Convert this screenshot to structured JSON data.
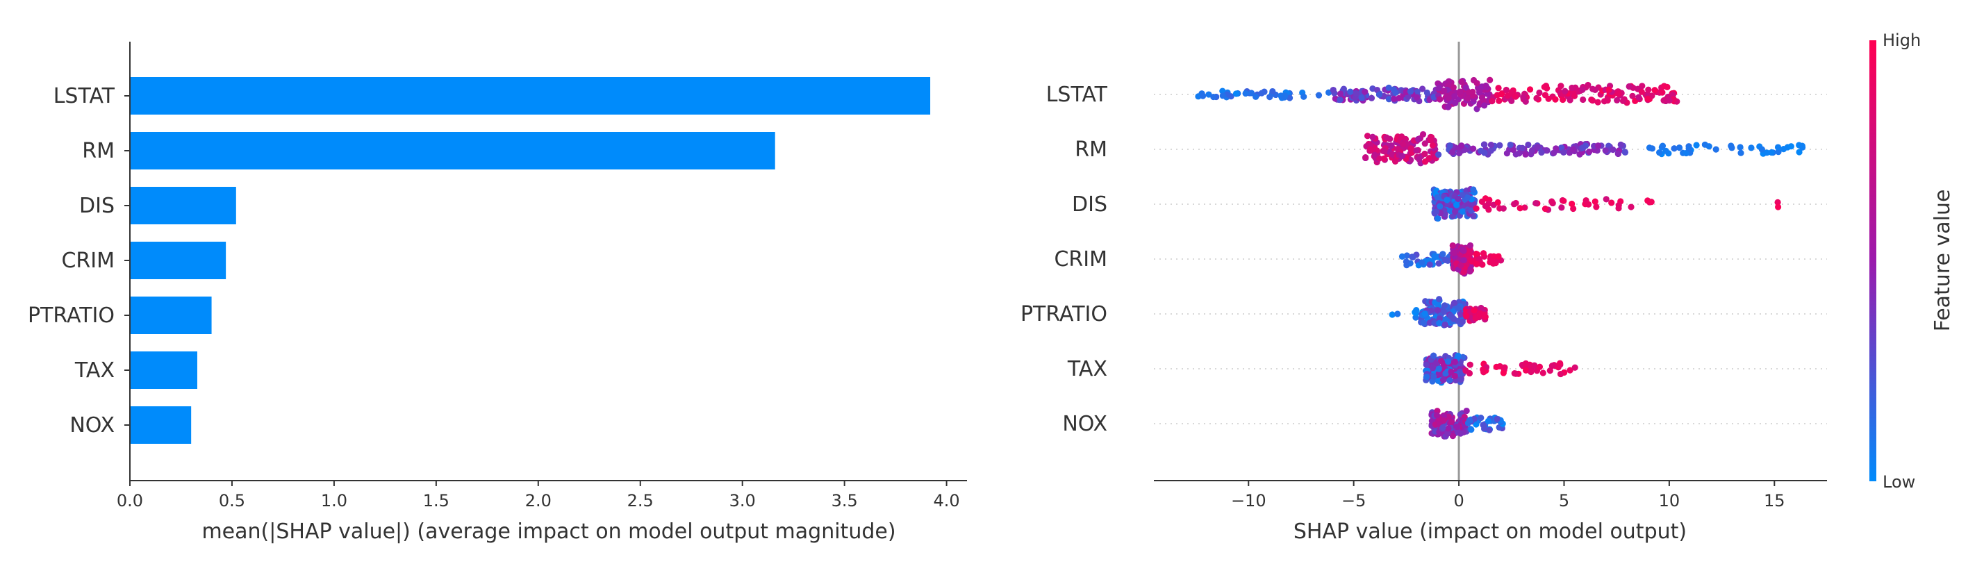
{
  "chart_data": [
    {
      "type": "bar",
      "orientation": "horizontal",
      "categories": [
        "LSTAT",
        "RM",
        "DIS",
        "CRIM",
        "PTRATIO",
        "TAX",
        "NOX"
      ],
      "values": [
        3.92,
        3.16,
        0.52,
        0.47,
        0.4,
        0.33,
        0.3
      ],
      "xlabel": "mean(|SHAP value|) (average impact on model output magnitude)",
      "xlim": [
        0,
        4.1
      ],
      "xticks": [
        "0.0",
        "0.5",
        "1.0",
        "1.5",
        "2.0",
        "2.5",
        "3.0",
        "3.5",
        "4.0"
      ],
      "bar_color": "#008bfb",
      "grid": false
    },
    {
      "type": "scatter",
      "style": "beeswarm",
      "categories": [
        "LSTAT",
        "RM",
        "DIS",
        "CRIM",
        "PTRATIO",
        "TAX",
        "NOX"
      ],
      "xlabel": "SHAP value (impact on model output)",
      "xlim": [
        -14.5,
        17.5
      ],
      "xticks": [
        "−10",
        "−5",
        "0",
        "5",
        "10",
        "15"
      ],
      "zero_line": true,
      "colorbar": {
        "label": "Feature value",
        "high_label": "High",
        "low_label": "Low",
        "high_color": "#ff0052",
        "mid_color": "#9b1aad",
        "low_color": "#008bfb"
      },
      "series": [
        {
          "feature": "LSTAT",
          "segments": [
            [
              -13,
              -6,
              0.02,
              0.2,
              0.12,
              40
            ],
            [
              -6,
              -1,
              0.2,
              0.55,
              0.4,
              90
            ],
            [
              -1,
              1.5,
              0.45,
              0.7,
              1.0,
              90
            ],
            [
              1.5,
              10.5,
              0.7,
              0.98,
              0.6,
              130
            ]
          ]
        },
        {
          "feature": "RM",
          "segments": [
            [
              -4.5,
              -1,
              0.55,
              0.9,
              1.0,
              120
            ],
            [
              -1,
              8,
              0.25,
              0.5,
              0.3,
              110
            ],
            [
              9,
              16.5,
              0.0,
              0.12,
              0.2,
              40
            ]
          ]
        },
        {
          "feature": "DIS",
          "segments": [
            [
              -1.2,
              0.8,
              0.0,
              0.45,
              1.0,
              170
            ],
            [
              0.8,
              9.5,
              0.75,
              0.98,
              0.35,
              40
            ],
            [
              15,
              15.5,
              0.9,
              0.98,
              0.2,
              2
            ]
          ]
        },
        {
          "feature": "CRIM",
          "segments": [
            [
              -2.7,
              -0.2,
              0.02,
              0.3,
              0.35,
              40
            ],
            [
              -0.3,
              0.6,
              0.5,
              0.9,
              1.0,
              120
            ],
            [
              0.6,
              2.1,
              0.8,
              0.98,
              0.35,
              25
            ]
          ]
        },
        {
          "feature": "PTRATIO",
          "segments": [
            [
              -3.2,
              -1.8,
              0.0,
              0.1,
              0.25,
              6
            ],
            [
              -1.8,
              0.3,
              0.02,
              0.4,
              1.0,
              120
            ],
            [
              0.3,
              1.3,
              0.7,
              0.98,
              0.4,
              35
            ]
          ]
        },
        {
          "feature": "TAX",
          "segments": [
            [
              -1.6,
              0.3,
              0.05,
              0.6,
              1.0,
              130
            ],
            [
              0.3,
              5.6,
              0.8,
              0.98,
              0.3,
              40
            ]
          ]
        },
        {
          "feature": "NOX",
          "segments": [
            [
              -1.3,
              0.4,
              0.3,
              0.7,
              1.0,
              110
            ],
            [
              0.4,
              2.1,
              0.0,
              0.3,
              0.4,
              40
            ]
          ]
        }
      ]
    }
  ]
}
